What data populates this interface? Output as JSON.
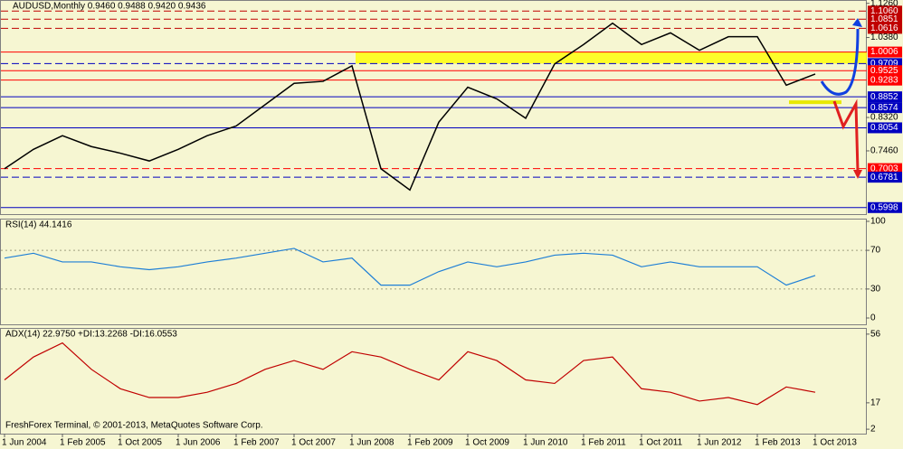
{
  "chart_data": [
    {
      "type": "line",
      "title": "AUDUSD,Monthly  0.9460 0.9488 0.9420 0.9436",
      "categories": [
        "1 Jun 2004",
        null,
        "1 Feb 2005",
        null,
        "1 Oct 2005",
        null,
        "1 Jun 2006",
        null,
        "1 Feb 2007",
        null,
        "1 Oct 2007",
        null,
        "1 Jun 2008",
        null,
        "1 Feb 2009",
        null,
        "1 Oct 2009",
        null,
        "1 Jun 2010",
        null,
        "1 Feb 2011",
        null,
        "1 Oct 2011",
        null,
        "1 Jun 2012",
        null,
        "1 Feb 2013",
        null,
        "1 Oct 2013"
      ],
      "series": [
        {
          "name": "AUDUSD",
          "color": "#000000",
          "values": [
            0.7,
            0.75,
            0.785,
            0.757,
            0.74,
            0.72,
            0.75,
            0.785,
            0.81,
            0.865,
            0.92,
            0.925,
            0.965,
            0.7,
            0.645,
            0.82,
            0.91,
            0.88,
            0.83,
            0.97,
            1.02,
            1.075,
            1.02,
            1.05,
            1.005,
            1.04,
            1.04,
            0.915,
            0.944
          ]
        }
      ],
      "ylim": [
        0.59,
        1.13
      ],
      "yticks": [
        {
          "value": 1.126,
          "label": "1.1260"
        },
        {
          "value": 1.038,
          "label": "1.0380"
        },
        {
          "value": 0.832,
          "label": "0.8320"
        },
        {
          "value": 0.746,
          "label": "0.7460"
        }
      ],
      "levels": [
        {
          "value": 1.106,
          "label": "1.1060",
          "color": "#c00000",
          "style": "dashed"
        },
        {
          "value": 1.0851,
          "label": "1.0851",
          "color": "#c00000",
          "style": "dashed"
        },
        {
          "value": 1.0616,
          "label": "1.0616",
          "color": "#c00000",
          "style": "dashed"
        },
        {
          "value": 1.0006,
          "label": "1.0006",
          "color": "#ff0000",
          "style": "solid"
        },
        {
          "value": 0.9709,
          "label": "0.9709",
          "color": "#0000c0",
          "style": "dashed"
        },
        {
          "value": 0.9525,
          "label": "0.9525",
          "color": "#ff0000",
          "style": "solid"
        },
        {
          "value": 0.9283,
          "label": "0.9283",
          "color": "#ff0000",
          "style": "solid"
        },
        {
          "value": 0.8852,
          "label": "0.8852",
          "color": "#0000c0",
          "style": "solid"
        },
        {
          "value": 0.8574,
          "label": "0.8574",
          "color": "#0000c0",
          "style": "solid"
        },
        {
          "value": 0.8054,
          "label": "0.8054",
          "color": "#0000c0",
          "style": "solid"
        },
        {
          "value": 0.7003,
          "label": "0.7003",
          "color": "#ff0000",
          "style": "dashed"
        },
        {
          "value": 0.6781,
          "label": "0.6781",
          "color": "#0000c0",
          "style": "dashed"
        },
        {
          "value": 0.5998,
          "label": "0.5998",
          "color": "#0000c0",
          "style": "solid"
        }
      ]
    },
    {
      "type": "line",
      "title": "RSI(14) 44.1416",
      "series": [
        {
          "name": "RSI(14)",
          "color": "#1e7fd6",
          "values": [
            62,
            67,
            58,
            58,
            53,
            50,
            53,
            58,
            62,
            67,
            72,
            58,
            62,
            34,
            34,
            48,
            58,
            53,
            58,
            65,
            67,
            65,
            53,
            58,
            53,
            53,
            53,
            34,
            44
          ]
        }
      ],
      "ylim": [
        0,
        100
      ],
      "yticks": [
        100,
        70,
        30,
        0
      ]
    },
    {
      "type": "line",
      "title": "ADX(14) 22.9750 +DI:13.2268 -DI:16.0553",
      "series": [
        {
          "name": "ADX(14)",
          "color": "#c00000",
          "values": [
            30,
            43,
            51,
            36,
            25,
            20,
            20,
            23,
            28,
            36,
            41,
            36,
            46,
            43,
            36,
            30,
            46,
            41,
            30,
            28,
            41,
            43,
            25,
            23,
            18,
            20,
            16,
            26,
            23
          ]
        }
      ],
      "ylim": [
        0,
        59
      ],
      "yticks": [
        56,
        17,
        2
      ],
      "footer": "FreshForex Terminal, © 2001-2013, MetaQuotes Software Corp."
    }
  ]
}
